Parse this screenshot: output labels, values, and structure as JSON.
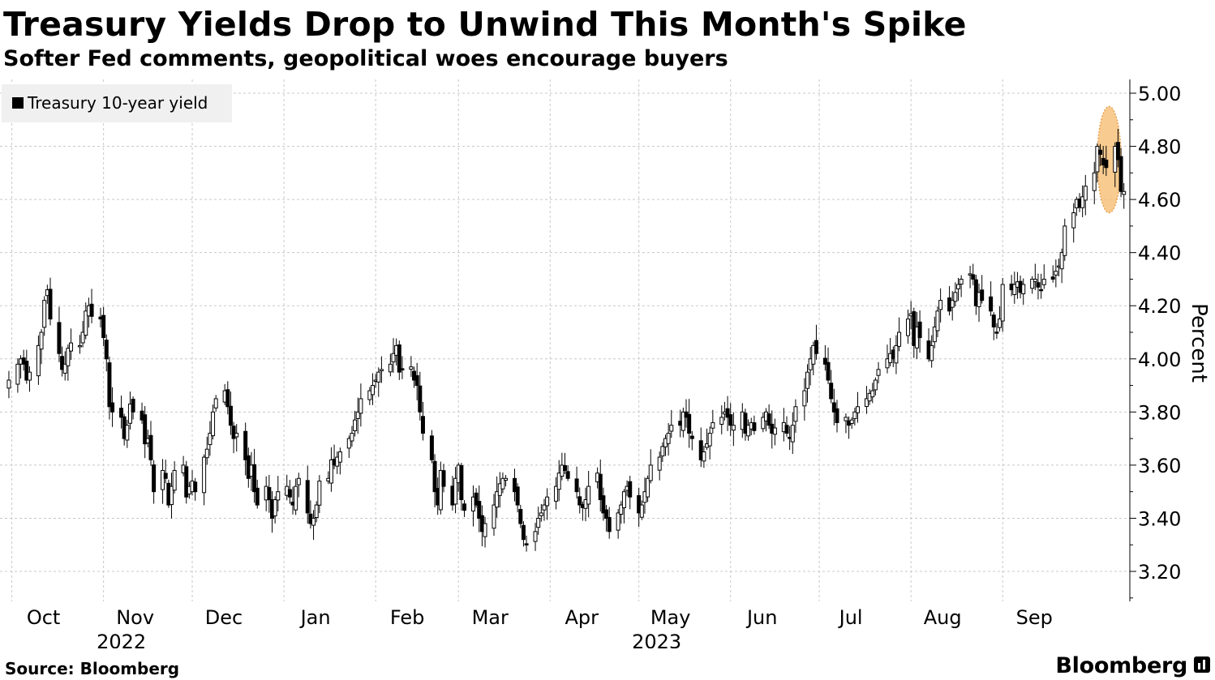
{
  "header": {
    "title": "Treasury Yields Drop to Unwind This Month's Spike",
    "subtitle": "Softer Fed comments, geopolitical woes encourage buyers"
  },
  "footer": {
    "source": "Source: Bloomberg",
    "brand": "Bloomberg"
  },
  "colors": {
    "candle": "#000000",
    "highlight_fill": "#f5b96b",
    "highlight_stroke": "#e8a04a",
    "grid": "#c8c8c8",
    "legend_bg": "#f0f0f0"
  },
  "chart_data": {
    "type": "candlestick",
    "title": "Treasury Yields Drop to Unwind This Month's Spike",
    "subtitle": "Softer Fed comments, geopolitical woes encourage buyers",
    "legend": [
      "Treasury 10-year yield"
    ],
    "legend_position": "top-left",
    "ylabel": "Percent",
    "ylim": [
      3.1,
      5.06
    ],
    "y_ticks": [
      3.2,
      3.4,
      3.6,
      3.8,
      4.0,
      4.2,
      4.4,
      4.6,
      4.8,
      5.0
    ],
    "y_tick_labels": [
      "3.20",
      "3.40",
      "3.60",
      "3.80",
      "4.00",
      "4.20",
      "4.40",
      "4.60",
      "4.80",
      "5.00"
    ],
    "x_range": [
      "2022-09-27",
      "2023-10-14"
    ],
    "x_month_labels": [
      {
        "label": "Oct",
        "date": "2022-10-01"
      },
      {
        "label": "Nov",
        "date": "2022-11-01"
      },
      {
        "label": "Dec",
        "date": "2022-12-01"
      },
      {
        "label": "Jan",
        "date": "2023-01-01"
      },
      {
        "label": "Feb",
        "date": "2023-02-01"
      },
      {
        "label": "Mar",
        "date": "2023-03-01"
      },
      {
        "label": "Apr",
        "date": "2023-04-01"
      },
      {
        "label": "May",
        "date": "2023-05-01"
      },
      {
        "label": "Jun",
        "date": "2023-06-01"
      },
      {
        "label": "Jul",
        "date": "2023-07-01"
      },
      {
        "label": "Aug",
        "date": "2023-08-01"
      },
      {
        "label": "Sep",
        "date": "2023-09-01"
      }
    ],
    "x_year_labels": [
      {
        "label": "2022",
        "date": "2022-11-01"
      },
      {
        "label": "2023",
        "date": "2023-05-01"
      }
    ],
    "grid": true,
    "highlight_range": {
      "x0": "2023-10-03",
      "x1": "2023-10-11",
      "y0": 4.55,
      "y1": 4.95
    },
    "closes": [
      3.92,
      3.98,
      4.0,
      3.98,
      3.92,
      3.95,
      4.05,
      4.1,
      4.22,
      4.26,
      4.15,
      4.02,
      3.96,
      3.98,
      4.04,
      4.06,
      4.05,
      4.1,
      4.18,
      4.2,
      4.16,
      4.15,
      4.08,
      4.0,
      3.82,
      3.8,
      3.78,
      3.7,
      3.75,
      3.83,
      3.8,
      3.77,
      3.68,
      3.7,
      3.62,
      3.5,
      3.58,
      3.55,
      3.45,
      3.52,
      3.58,
      3.6,
      3.48,
      3.52,
      3.54,
      3.5,
      3.63,
      3.66,
      3.72,
      3.8,
      3.85,
      3.88,
      3.82,
      3.75,
      3.7,
      3.72,
      3.62,
      3.55,
      3.6,
      3.5,
      3.45,
      3.52,
      3.47,
      3.4,
      3.47,
      3.5,
      3.52,
      3.48,
      3.45,
      3.52,
      3.55,
      3.42,
      3.38,
      3.4,
      3.45,
      3.54,
      3.55,
      3.62,
      3.6,
      3.63,
      3.65,
      3.7,
      3.72,
      3.77,
      3.8,
      3.85,
      3.88,
      3.9,
      3.92,
      3.95,
      3.96,
      3.98,
      4.02,
      4.05,
      3.95,
      3.96,
      3.97,
      3.92,
      3.9,
      3.8,
      3.72,
      3.62,
      3.5,
      3.45,
      3.58,
      3.52,
      3.45,
      3.55,
      3.6,
      3.47,
      3.43,
      3.48,
      3.45,
      3.4,
      3.35,
      3.38,
      3.45,
      3.5,
      3.53,
      3.55,
      3.55,
      3.5,
      3.45,
      3.38,
      3.32,
      3.3,
      3.35,
      3.4,
      3.42,
      3.45,
      3.48,
      3.52,
      3.57,
      3.6,
      3.58,
      3.55,
      3.5,
      3.45,
      3.44,
      3.47,
      3.52,
      3.57,
      3.47,
      3.42,
      3.4,
      3.35,
      3.42,
      3.45,
      3.5,
      3.52,
      3.48,
      3.42,
      3.45,
      3.5,
      3.55,
      3.6,
      3.63,
      3.67,
      3.7,
      3.72,
      3.75,
      3.75,
      3.8,
      3.78,
      3.72,
      3.7,
      3.62,
      3.65,
      3.68,
      3.72,
      3.76,
      3.78,
      3.8,
      3.78,
      3.75,
      3.75,
      3.8,
      3.72,
      3.75,
      3.76,
      3.73,
      3.78,
      3.8,
      3.75,
      3.72,
      3.74,
      3.76,
      3.72,
      3.7,
      3.75,
      3.82,
      3.88,
      3.95,
      4.0,
      4.05,
      4.02,
      3.98,
      3.92,
      3.85,
      3.8,
      3.76,
      3.78,
      3.75,
      3.77,
      3.8,
      3.82,
      3.85,
      3.87,
      3.88,
      3.92,
      3.96,
      4.0,
      4.02,
      4.0,
      4.05,
      4.1,
      4.15,
      4.17,
      4.05,
      4.12,
      4.08,
      4.0,
      4.05,
      4.12,
      4.18,
      4.22,
      4.18,
      4.22,
      4.25,
      4.28,
      4.3,
      4.32,
      4.3,
      4.2,
      4.25,
      4.22,
      4.18,
      4.12,
      4.1,
      4.15,
      4.28,
      4.26,
      4.28,
      4.29,
      4.25,
      4.28,
      4.3,
      4.3,
      4.27,
      4.26,
      4.3,
      4.3,
      4.33,
      4.35,
      4.4,
      4.5,
      4.55,
      4.6,
      4.57,
      4.61,
      4.65,
      4.7,
      4.8,
      4.77,
      4.73,
      4.72,
      4.8,
      4.75,
      4.63,
      4.63
    ]
  }
}
